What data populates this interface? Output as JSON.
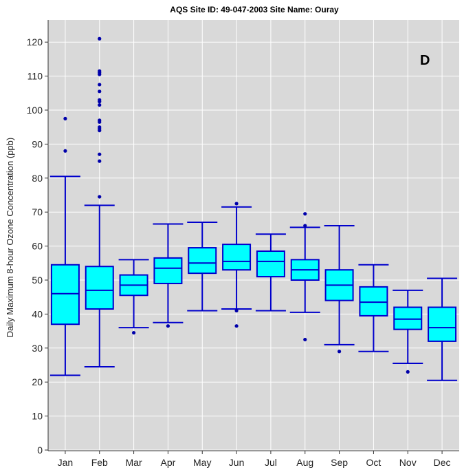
{
  "chart_data": {
    "type": "box",
    "title": "AQS Site ID: 49-047-2003   Site Name: Ouray",
    "panel_label": "D",
    "ylabel": "Daily Maximum 8-hour Ozone Concentration (ppb)",
    "xlabel": "",
    "ylim": [
      0,
      125
    ],
    "yticks": [
      0,
      10,
      20,
      30,
      40,
      50,
      60,
      70,
      80,
      90,
      100,
      110,
      120
    ],
    "grid": true,
    "categories": [
      "Jan",
      "Feb",
      "Mar",
      "Apr",
      "May",
      "Jun",
      "Jul",
      "Aug",
      "Sep",
      "Oct",
      "Nov",
      "Dec"
    ],
    "boxes": [
      {
        "whisker_low": 22,
        "q1": 37,
        "median": 46,
        "q3": 54.5,
        "whisker_high": 80.5,
        "outliers": [
          88,
          97.5
        ]
      },
      {
        "whisker_low": 24.5,
        "q1": 41.5,
        "median": 47,
        "q3": 54,
        "whisker_high": 72,
        "outliers": [
          74.5,
          85,
          87,
          94,
          94.5,
          95,
          96.5,
          97,
          101.5,
          102.5,
          103,
          105.5,
          107.5,
          110.5,
          111,
          111.5,
          121
        ]
      },
      {
        "whisker_low": 36,
        "q1": 45.5,
        "median": 48.5,
        "q3": 51.5,
        "whisker_high": 56,
        "outliers": [
          34.5
        ]
      },
      {
        "whisker_low": 37.5,
        "q1": 49,
        "median": 53.5,
        "q3": 56.5,
        "whisker_high": 66.5,
        "outliers": [
          36.5
        ]
      },
      {
        "whisker_low": 41,
        "q1": 52,
        "median": 55,
        "q3": 59.5,
        "whisker_high": 67,
        "outliers": []
      },
      {
        "whisker_low": 41.5,
        "q1": 53,
        "median": 55.5,
        "q3": 60.5,
        "whisker_high": 71.5,
        "outliers": [
          36.5,
          41,
          72.5
        ]
      },
      {
        "whisker_low": 41,
        "q1": 51,
        "median": 55.5,
        "q3": 58.5,
        "whisker_high": 63.5,
        "outliers": []
      },
      {
        "whisker_low": 40.5,
        "q1": 50,
        "median": 53,
        "q3": 56,
        "whisker_high": 65.5,
        "outliers": [
          32.5,
          66,
          69.5
        ]
      },
      {
        "whisker_low": 31,
        "q1": 44,
        "median": 48.5,
        "q3": 53,
        "whisker_high": 66,
        "outliers": [
          29
        ]
      },
      {
        "whisker_low": 29,
        "q1": 39.5,
        "median": 43.5,
        "q3": 48,
        "whisker_high": 54.5,
        "outliers": []
      },
      {
        "whisker_low": 25.5,
        "q1": 35.5,
        "median": 38.5,
        "q3": 42,
        "whisker_high": 47,
        "outliers": [
          23
        ]
      },
      {
        "whisker_low": 20.5,
        "q1": 32,
        "median": 36,
        "q3": 42,
        "whisker_high": 50.5,
        "outliers": []
      }
    ],
    "colors": {
      "panel_bg": "#d9d9d9",
      "grid": "#ffffff",
      "box_fill": "#00ffff",
      "box_line": "#0000cc",
      "outlier": "#0000aa"
    }
  }
}
